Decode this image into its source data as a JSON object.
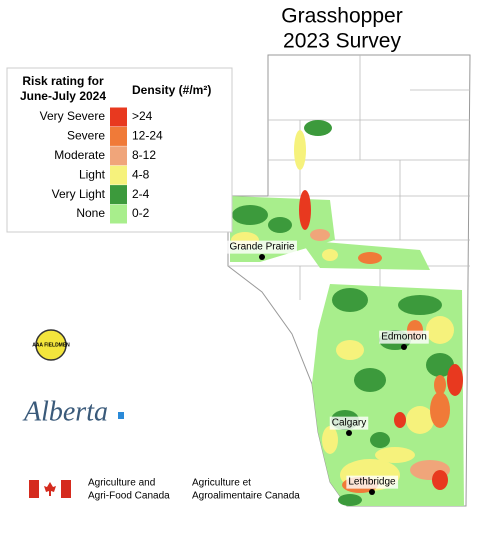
{
  "title": [
    "Grasshopper",
    "2023 Survey"
  ],
  "legend": {
    "title": [
      "Risk rating for",
      "June-July 2024"
    ],
    "density_header": "Density (#/m²)",
    "items": [
      {
        "rating": "Very Severe",
        "range": ">24",
        "color": "#e8391f"
      },
      {
        "rating": "Severe",
        "range": "12-24",
        "color": "#f07a38"
      },
      {
        "rating": "Moderate",
        "range": "8-12",
        "color": "#f0a57a"
      },
      {
        "rating": "Light",
        "range": "4-8",
        "color": "#f6f27c"
      },
      {
        "rating": "Very Light",
        "range": "2-4",
        "color": "#3c9a3c"
      },
      {
        "rating": "None",
        "range": "0-2",
        "color": "#a8ee8c"
      }
    ]
  },
  "cities": [
    "Grande Prairie",
    "Edmonton",
    "Calgary",
    "Lethbridge"
  ],
  "logos": {
    "aaa": "AAA FIELDMEN",
    "alberta": "Alberta",
    "aafc_en": [
      "Agriculture and",
      "Agri-Food Canada"
    ],
    "aafc_fr": [
      "Agriculture et",
      "Agroalimentaire Canada"
    ]
  }
}
